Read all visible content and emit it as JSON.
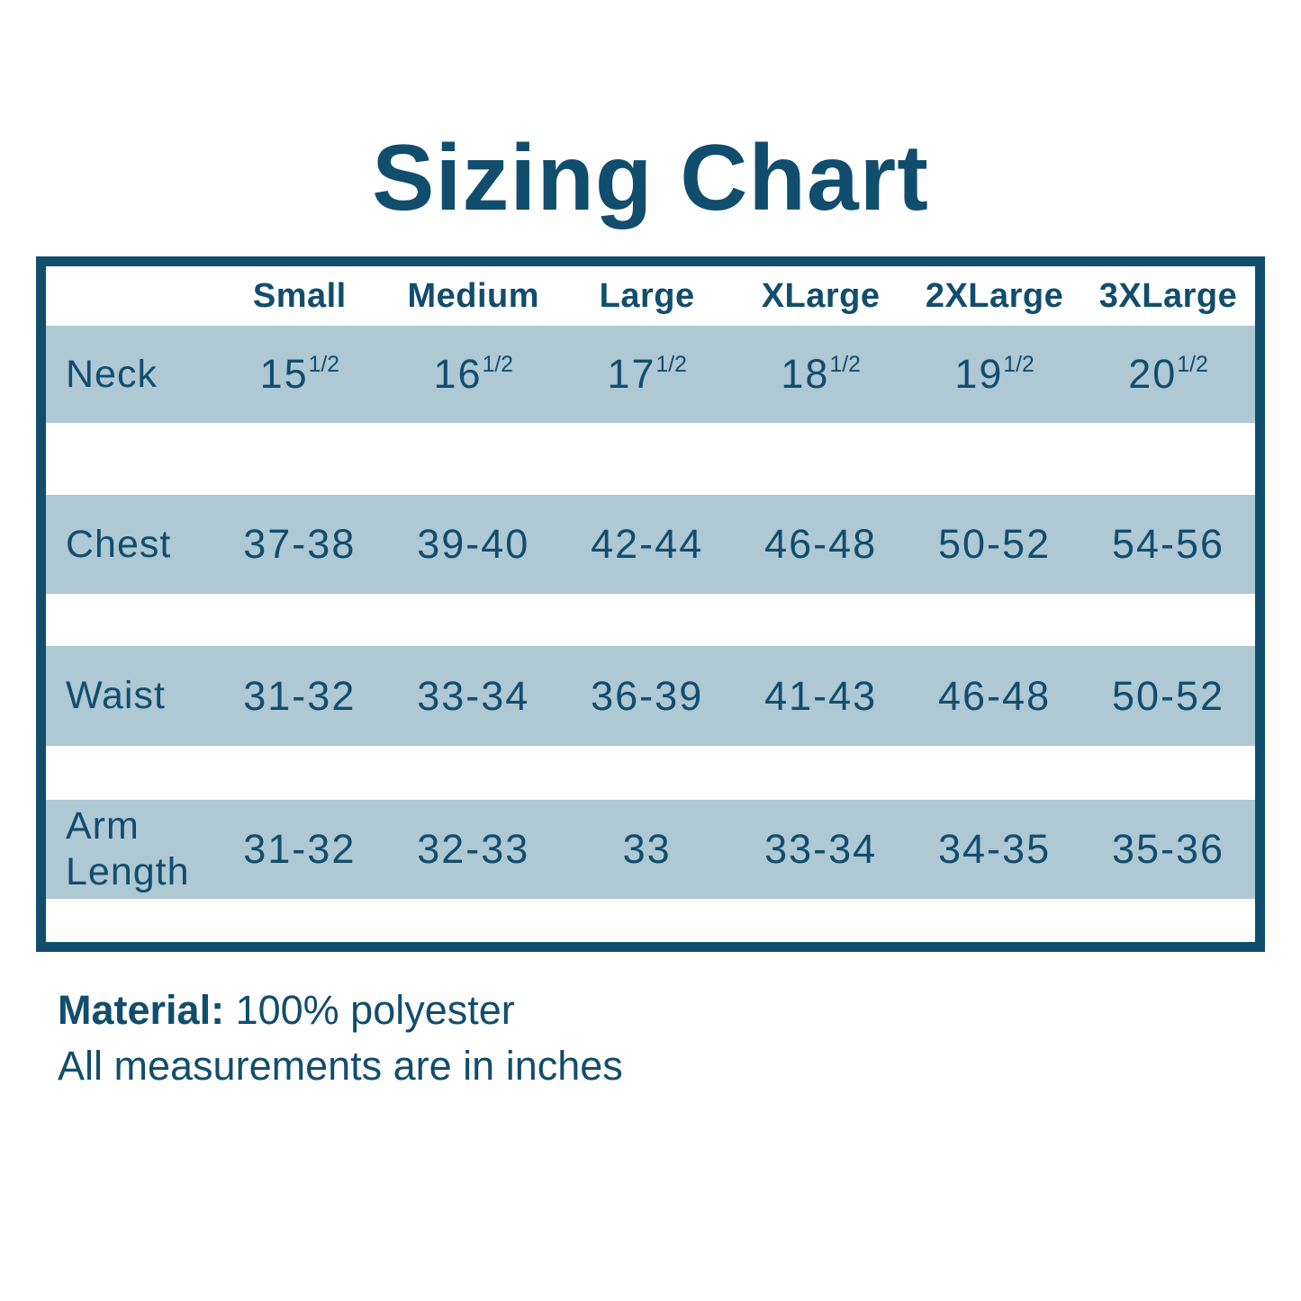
{
  "title": "Sizing Chart",
  "chart_data": {
    "type": "table",
    "title": "Sizing Chart",
    "columns": [
      "Small",
      "Medium",
      "Large",
      "XLarge",
      "2XLarge",
      "3XLarge"
    ],
    "rows": [
      {
        "label": "Neck",
        "cells": [
          {
            "base": "15",
            "sup": "1/2"
          },
          {
            "base": "16",
            "sup": "1/2"
          },
          {
            "base": "17",
            "sup": "1/2"
          },
          {
            "base": "18",
            "sup": "1/2"
          },
          {
            "base": "19",
            "sup": "1/2"
          },
          {
            "base": "20",
            "sup": "1/2"
          }
        ]
      },
      {
        "label": "Chest",
        "cells": [
          {
            "base": "37-38"
          },
          {
            "base": "39-40"
          },
          {
            "base": "42-44"
          },
          {
            "base": "46-48"
          },
          {
            "base": "50-52"
          },
          {
            "base": "54-56"
          }
        ]
      },
      {
        "label": "Waist",
        "cells": [
          {
            "base": "31-32"
          },
          {
            "base": "33-34"
          },
          {
            "base": "36-39"
          },
          {
            "base": "41-43"
          },
          {
            "base": "46-48"
          },
          {
            "base": "50-52"
          }
        ]
      },
      {
        "label": "Arm Length",
        "cells": [
          {
            "base": "31-32"
          },
          {
            "base": "32-33"
          },
          {
            "base": "33"
          },
          {
            "base": "33-34"
          },
          {
            "base": "34-35"
          },
          {
            "base": "35-36"
          }
        ]
      }
    ],
    "layout": {
      "row_bands": true,
      "grid": false
    }
  },
  "footer": {
    "material_label": "Material:",
    "material_value": "100% polyester",
    "note": "All measurements are in inches"
  },
  "colors": {
    "teal": "#114D6D",
    "band_blue": "#AEC8D4",
    "background": "#FFFFFF"
  }
}
